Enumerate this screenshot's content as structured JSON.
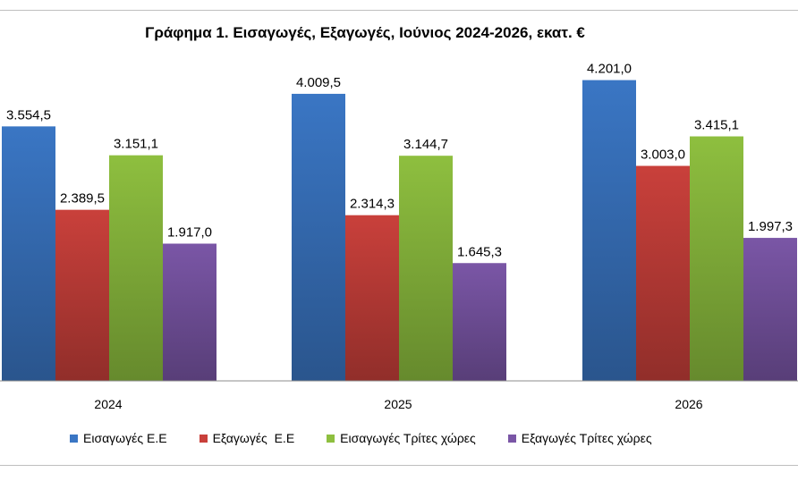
{
  "chart_data": {
    "type": "bar",
    "title": "Γράφημα 1. Εισαγωγές, Εξαγωγές, Ιούνιος 2024-2026, εκατ. €",
    "categories": [
      "2024",
      "2025",
      "2026"
    ],
    "series": [
      {
        "name": "Εισαγωγές Ε.Ε",
        "color": "#3a76c4",
        "values": [
          3554.5,
          4009.5,
          4201.0
        ],
        "labels": [
          "3.554,5",
          "4.009,5",
          "4.201,0"
        ]
      },
      {
        "name": "Εξαγωγές  Ε.Ε",
        "color": "#c9403b",
        "values": [
          2389.5,
          2314.3,
          3003.0
        ],
        "labels": [
          "2.389,5",
          "2.314,3",
          "3.003,0"
        ]
      },
      {
        "name": "Εισαγωγές Τρίτες χώρες",
        "color": "#8ebf3f",
        "values": [
          3151.1,
          3144.7,
          3415.1
        ],
        "labels": [
          "3.151,1",
          "3.144,7",
          "3.415,1"
        ]
      },
      {
        "name": "Εξαγωγές Τρίτες χώρες",
        "color": "#7a56a6",
        "values": [
          1917.0,
          1645.3,
          1997.3
        ],
        "labels": [
          "1.917,0",
          "1.645,3",
          "1.997,3"
        ]
      }
    ],
    "ylim": [
      0,
      4733
    ],
    "grid": false,
    "legend_position": "bottom"
  }
}
